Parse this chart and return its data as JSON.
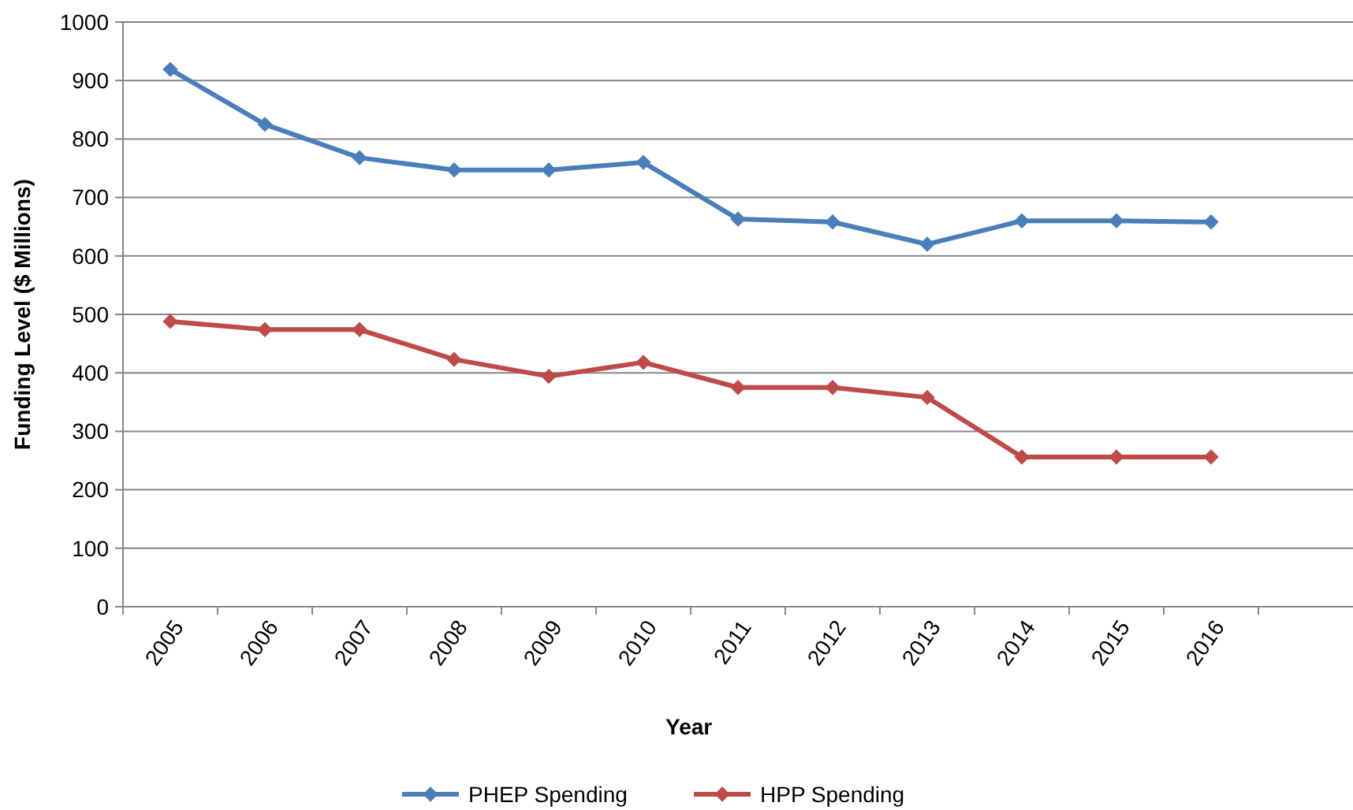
{
  "chart_data": {
    "type": "line",
    "xlabel": "Year",
    "ylabel": "Funding Level ($ Millions)",
    "categories": [
      "2005",
      "2006",
      "2007",
      "2008",
      "2009",
      "2010",
      "2011",
      "2012",
      "2013",
      "2014",
      "2015",
      "2016",
      null
    ],
    "series": [
      {
        "name": "PHEP Spending",
        "color": "#4a7ebb",
        "values": [
          919,
          825,
          768,
          747,
          747,
          760,
          663,
          658,
          620,
          660,
          660,
          658,
          null
        ]
      },
      {
        "name": "HPP Spending",
        "color": "#be4b48",
        "values": [
          488,
          474,
          474,
          423,
          394,
          418,
          375,
          375,
          358,
          256,
          256,
          256,
          null
        ]
      }
    ],
    "ylim": [
      0,
      1000
    ],
    "yticks": [
      0,
      100,
      200,
      300,
      400,
      500,
      600,
      700,
      800,
      900,
      1000
    ],
    "grid": "y",
    "legend": "bottom",
    "marker": "diamond",
    "line_style": "solid"
  }
}
